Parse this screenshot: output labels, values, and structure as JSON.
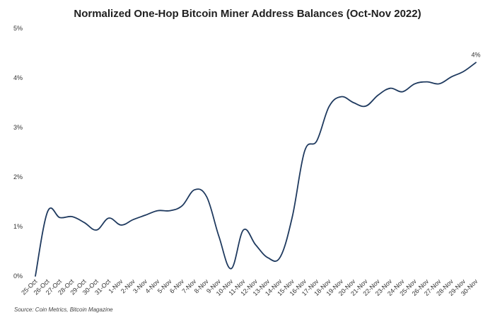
{
  "chart_data": {
    "type": "line",
    "title": "Normalized One-Hop Bitcoin Miner Address Balances (Oct-Nov 2022)",
    "xlabel": "",
    "ylabel": "",
    "grid": false,
    "legend": "none",
    "ylim": [
      0,
      5
    ],
    "y_ticks": [
      "0%",
      "1%",
      "2%",
      "3%",
      "4%",
      "5%"
    ],
    "y_tick_values": [
      0,
      1,
      2,
      3,
      4,
      5
    ],
    "categories": [
      "25-Oct",
      "26-Oct",
      "27-Oct",
      "28-Oct",
      "29-Oct",
      "30-Oct",
      "31-Oct",
      "1-Nov",
      "2-Nov",
      "3-Nov",
      "4-Nov",
      "5-Nov",
      "6-Nov",
      "7-Nov",
      "8-Nov",
      "9-Nov",
      "10-Nov",
      "11-Nov",
      "12-Nov",
      "13-Nov",
      "14-Nov",
      "15-Nov",
      "16-Nov",
      "17-Nov",
      "18-Nov",
      "19-Nov",
      "20-Nov",
      "21-Nov",
      "22-Nov",
      "23-Nov",
      "24-Nov",
      "25-Nov",
      "26-Nov",
      "27-Nov",
      "28-Nov",
      "29-Nov",
      "30-Nov"
    ],
    "series": [
      {
        "values": [
          0.0,
          1.3,
          1.18,
          1.2,
          1.08,
          0.93,
          1.17,
          1.03,
          1.14,
          1.23,
          1.32,
          1.32,
          1.42,
          1.74,
          1.6,
          0.8,
          0.15,
          0.93,
          0.63,
          0.37,
          0.38,
          1.2,
          2.52,
          2.73,
          3.42,
          3.62,
          3.5,
          3.43,
          3.65,
          3.79,
          3.72,
          3.88,
          3.92,
          3.88,
          4.02,
          4.13,
          4.31
        ],
        "color": "#1f3a5f"
      }
    ],
    "annotations": [
      {
        "text": "4%",
        "x": "30-Nov",
        "y": 4.31
      }
    ],
    "source": "Source: Coin Metrics, Bitcoin Magazine"
  }
}
